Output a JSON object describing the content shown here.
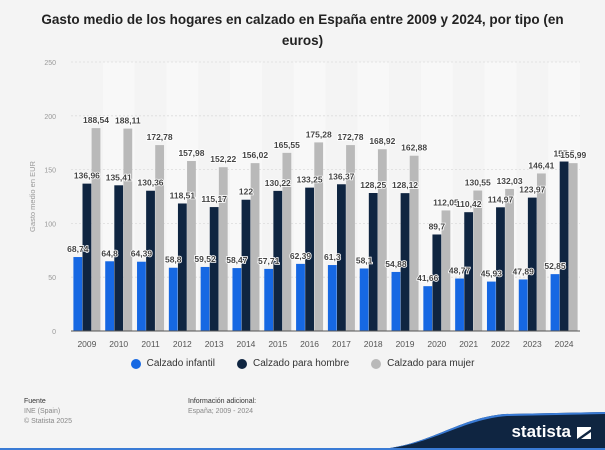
{
  "title": "Gasto medio de los hogares en calzado en España entre 2009 y 2024, por tipo (en euros)",
  "chart_data": {
    "type": "bar",
    "title": "Gasto medio de los hogares en calzado en España entre 2009 y 2024, por tipo (en euros)",
    "xlabel": "",
    "ylabel": "Gasto medio en EUR",
    "ylim": [
      0,
      250
    ],
    "yticks": [
      0,
      50,
      100,
      150,
      200,
      250
    ],
    "grid": true,
    "legend_position": "bottom",
    "categories": [
      "2009",
      "2010",
      "2011",
      "2012",
      "2013",
      "2014",
      "2015",
      "2016",
      "2017",
      "2018",
      "2019",
      "2020",
      "2021",
      "2022",
      "2023",
      "2024"
    ],
    "series": [
      {
        "name": "Calzado infantil",
        "color": "#1668e3",
        "values": [
          68.74,
          64.8,
          64.39,
          58.8,
          59.52,
          58.47,
          57.71,
          62.39,
          61.3,
          58.1,
          54.88,
          41.66,
          48.77,
          45.93,
          47.89,
          52.85
        ],
        "labels": [
          "68,74",
          "64,8",
          "64,39",
          "58,8",
          "59,52",
          "58,47",
          "57,71",
          "62,39",
          "61,3",
          "58,1",
          "54,88",
          "41,66",
          "48,77",
          "45,93",
          "47,89",
          "52,85"
        ]
      },
      {
        "name": "Calzado para hombre",
        "color": "#0f2541",
        "values": [
          136.96,
          135.41,
          130.36,
          118.51,
          115.17,
          122,
          130.22,
          133.25,
          136.37,
          128.25,
          128.12,
          89.7,
          110.42,
          114.97,
          123.97,
          157.5
        ],
        "labels": [
          "136,96",
          "135,41",
          "130,36",
          "118,51",
          "115,17",
          "122",
          "130,22",
          "133,25",
          "136,37",
          "128,25",
          "128,12",
          "89,7",
          "110,42",
          "114,97",
          "123,97",
          "157,5"
        ]
      },
      {
        "name": "Calzado para mujer",
        "color": "#b9b9b9",
        "values": [
          188.54,
          188.11,
          172.78,
          157.98,
          152.22,
          156.02,
          165.55,
          175.28,
          172.78,
          168.92,
          162.88,
          112.05,
          130.55,
          132.03,
          146.41,
          155.99
        ],
        "labels": [
          "188,54",
          "188,11",
          "172,78",
          "157,98",
          "152,22",
          "156,02",
          "165,55",
          "175,28",
          "172,78",
          "168,92",
          "162,88",
          "112,05",
          "130,55",
          "132,03",
          "146,41",
          "155,99"
        ]
      }
    ]
  },
  "footer": {
    "source_heading": "Fuente",
    "source": "INE (Spain)",
    "copyright": "© Statista 2025",
    "info_heading": "Información adicional:",
    "info": "España; 2009 - 2024",
    "brand": "statista"
  }
}
